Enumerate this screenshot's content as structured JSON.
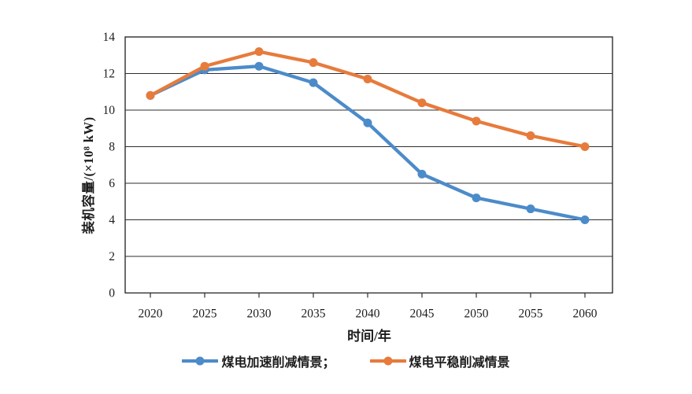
{
  "style": {
    "background": "#ffffff",
    "axis_color": "#2e2e2e",
    "text_color": "#1d1d1d",
    "series_blue": "#4C8BC9",
    "series_orange": "#E77B3C"
  },
  "chart_data": {
    "type": "line",
    "title": "",
    "xlabel": "时间/年",
    "ylabel": "装机容量/(×10⁸ kW)",
    "x": [
      2020,
      2025,
      2030,
      2035,
      2040,
      2045,
      2050,
      2055,
      2060
    ],
    "ylim": [
      0,
      14
    ],
    "ytick_step": 2,
    "yticks": [
      0,
      2,
      4,
      6,
      8,
      10,
      12,
      14
    ],
    "grid": "horizontal",
    "legend_position": "bottom-center",
    "series": [
      {
        "name": "煤电加速削减情景",
        "color": "#4C8BC9",
        "marker": "circle",
        "values": [
          10.8,
          12.2,
          12.4,
          11.5,
          9.3,
          6.5,
          5.2,
          4.6,
          4.0
        ]
      },
      {
        "name": "煤电平稳削减情景",
        "color": "#E77B3C",
        "marker": "circle",
        "values": [
          10.8,
          12.4,
          13.2,
          12.6,
          11.7,
          10.4,
          9.4,
          8.6,
          8.0
        ]
      }
    ]
  },
  "legend": {
    "items": [
      {
        "label": "煤电加速削减情景；",
        "color": "#4C8BC9"
      },
      {
        "label": "煤电平稳削减情景",
        "color": "#E77B3C"
      }
    ]
  }
}
